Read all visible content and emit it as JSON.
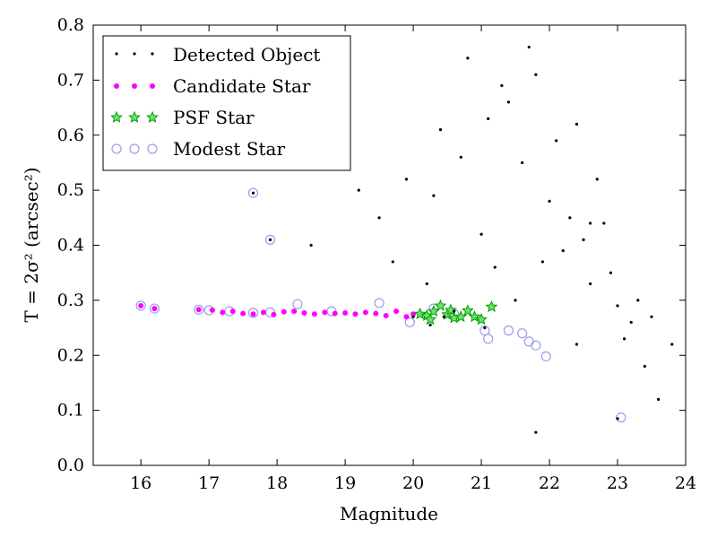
{
  "chart_data": {
    "type": "scatter",
    "title": "",
    "xlabel": "Magnitude",
    "ylabel": "T = 2σ² (arcsec²)",
    "xlim": [
      15.3,
      24.0
    ],
    "ylim": [
      0.0,
      0.8
    ],
    "xticks": [
      "16",
      "17",
      "18",
      "19",
      "20",
      "21",
      "22",
      "23",
      "24"
    ],
    "yticks": [
      "0.0",
      "0.1",
      "0.2",
      "0.3",
      "0.4",
      "0.5",
      "0.6",
      "0.7",
      "0.8"
    ],
    "grid": false,
    "legend_position": "top-left",
    "colors": {
      "detected": "#000000",
      "candidate": "#ff00ff",
      "psf": "#00a000",
      "modest": "#9b9bf0"
    },
    "series": [
      {
        "name": "Detected Object",
        "marker": "dot",
        "x": [
          17.65,
          17.9,
          18.5,
          19.0,
          19.2,
          19.5,
          19.7,
          19.9,
          20.0,
          20.2,
          20.4,
          20.6,
          20.8,
          21.0,
          21.2,
          21.4,
          21.6,
          21.8,
          22.0,
          22.2,
          22.4,
          22.6,
          22.8,
          23.0,
          23.2,
          23.4,
          23.6,
          23.8,
          20.3,
          20.7,
          21.1,
          21.5,
          21.9,
          22.3,
          22.7,
          23.1,
          23.5,
          21.3,
          21.7,
          22.1,
          22.5,
          22.9,
          23.3,
          21.05,
          20.25,
          20.45,
          22.6,
          22.4,
          23.0,
          21.8
        ],
        "y": [
          0.495,
          0.41,
          0.4,
          0.58,
          0.5,
          0.45,
          0.37,
          0.52,
          0.27,
          0.33,
          0.61,
          0.28,
          0.74,
          0.42,
          0.36,
          0.66,
          0.55,
          0.71,
          0.48,
          0.39,
          0.62,
          0.33,
          0.44,
          0.29,
          0.26,
          0.18,
          0.12,
          0.22,
          0.49,
          0.56,
          0.63,
          0.3,
          0.37,
          0.45,
          0.52,
          0.23,
          0.27,
          0.69,
          0.76,
          0.59,
          0.41,
          0.35,
          0.3,
          0.25,
          0.255,
          0.27,
          0.44,
          0.22,
          0.085,
          0.06
        ]
      },
      {
        "name": "Candidate Star",
        "marker": "circle",
        "x": [
          16.0,
          16.2,
          16.85,
          17.05,
          17.2,
          17.35,
          17.5,
          17.65,
          17.8,
          17.95,
          18.1,
          18.25,
          18.4,
          18.55,
          18.7,
          18.85,
          19.0,
          19.15,
          19.3,
          19.45,
          19.6,
          19.75,
          19.9,
          20.0
        ],
        "y": [
          0.29,
          0.285,
          0.283,
          0.282,
          0.278,
          0.28,
          0.276,
          0.275,
          0.278,
          0.274,
          0.279,
          0.28,
          0.277,
          0.275,
          0.278,
          0.276,
          0.277,
          0.275,
          0.278,
          0.276,
          0.272,
          0.28,
          0.27,
          0.275
        ]
      },
      {
        "name": "PSF Star",
        "marker": "star",
        "x": [
          20.1,
          20.2,
          20.3,
          20.4,
          20.5,
          20.6,
          20.7,
          20.8,
          20.9,
          21.0,
          21.15,
          20.25,
          20.55
        ],
        "y": [
          0.275,
          0.272,
          0.28,
          0.29,
          0.274,
          0.268,
          0.27,
          0.281,
          0.27,
          0.265,
          0.288,
          0.265,
          0.282
        ]
      },
      {
        "name": "Modest Star",
        "marker": "circle",
        "x": [
          16.0,
          16.2,
          16.85,
          17.0,
          17.3,
          17.65,
          17.9,
          18.3,
          18.8,
          19.5,
          19.95,
          20.3,
          20.6,
          21.05,
          21.1,
          21.4,
          21.6,
          21.7,
          21.8,
          21.95,
          23.05,
          17.65,
          17.9
        ],
        "y": [
          0.29,
          0.285,
          0.283,
          0.282,
          0.28,
          0.277,
          0.278,
          0.293,
          0.28,
          0.295,
          0.26,
          0.285,
          0.275,
          0.245,
          0.23,
          0.245,
          0.24,
          0.225,
          0.218,
          0.198,
          0.087,
          0.495,
          0.41
        ]
      }
    ]
  }
}
